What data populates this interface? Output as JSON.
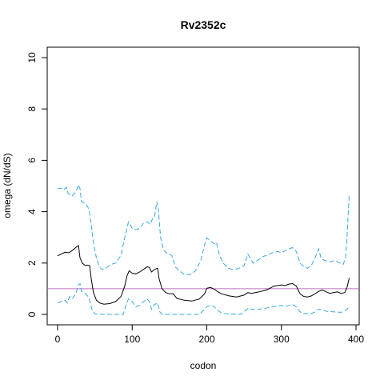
{
  "chart_data": {
    "type": "line",
    "title": "Rv2352c",
    "xlabel": "codon",
    "ylabel": "omega (dN/dS)",
    "xlim": [
      0,
      400
    ],
    "ylim": [
      0,
      10
    ],
    "x_ticks": [
      0,
      100,
      200,
      300,
      400
    ],
    "y_ticks": [
      0,
      2,
      4,
      6,
      8,
      10
    ],
    "reference_line": {
      "y": 1,
      "color": "#c06fc0"
    },
    "grid": false,
    "legend": "none",
    "colors": {
      "mean": "#000000",
      "bounds": "#3aa7e0"
    },
    "series": [
      {
        "style": "solid",
        "points": [
          [
            0,
            2.28
          ],
          [
            5,
            2.35
          ],
          [
            10,
            2.42
          ],
          [
            15,
            2.4
          ],
          [
            20,
            2.5
          ],
          [
            25,
            2.62
          ],
          [
            28,
            2.68
          ],
          [
            30,
            2.2
          ],
          [
            33,
            2.0
          ],
          [
            37,
            1.9
          ],
          [
            40,
            1.92
          ],
          [
            43,
            1.9
          ],
          [
            45,
            1.4
          ],
          [
            48,
            0.85
          ],
          [
            52,
            0.55
          ],
          [
            57,
            0.44
          ],
          [
            62,
            0.4
          ],
          [
            70,
            0.42
          ],
          [
            78,
            0.5
          ],
          [
            85,
            0.7
          ],
          [
            90,
            1.1
          ],
          [
            93,
            1.5
          ],
          [
            96,
            1.7
          ],
          [
            100,
            1.6
          ],
          [
            105,
            1.58
          ],
          [
            110,
            1.65
          ],
          [
            115,
            1.75
          ],
          [
            120,
            1.85
          ],
          [
            123,
            1.83
          ],
          [
            126,
            1.65
          ],
          [
            130,
            1.75
          ],
          [
            134,
            1.8
          ],
          [
            136,
            1.4
          ],
          [
            140,
            1.0
          ],
          [
            145,
            0.85
          ],
          [
            150,
            0.8
          ],
          [
            155,
            0.8
          ],
          [
            160,
            0.62
          ],
          [
            170,
            0.55
          ],
          [
            180,
            0.52
          ],
          [
            190,
            0.6
          ],
          [
            197,
            0.8
          ],
          [
            200,
            1.02
          ],
          [
            205,
            1.05
          ],
          [
            210,
            0.98
          ],
          [
            215,
            0.88
          ],
          [
            220,
            0.8
          ],
          [
            230,
            0.72
          ],
          [
            240,
            0.68
          ],
          [
            250,
            0.75
          ],
          [
            255,
            0.85
          ],
          [
            260,
            0.82
          ],
          [
            270,
            0.88
          ],
          [
            280,
            0.95
          ],
          [
            290,
            1.1
          ],
          [
            300,
            1.15
          ],
          [
            305,
            1.12
          ],
          [
            310,
            1.18
          ],
          [
            315,
            1.2
          ],
          [
            320,
            1.1
          ],
          [
            325,
            0.8
          ],
          [
            330,
            0.7
          ],
          [
            335,
            0.68
          ],
          [
            340,
            0.72
          ],
          [
            345,
            0.8
          ],
          [
            350,
            0.9
          ],
          [
            355,
            0.95
          ],
          [
            360,
            0.88
          ],
          [
            365,
            0.82
          ],
          [
            370,
            0.85
          ],
          [
            375,
            0.88
          ],
          [
            380,
            0.82
          ],
          [
            385,
            0.85
          ],
          [
            388,
            1.05
          ],
          [
            391,
            1.42
          ]
        ]
      },
      {
        "style": "dashed",
        "points": [
          [
            0,
            4.9
          ],
          [
            5,
            4.92
          ],
          [
            8,
            4.85
          ],
          [
            12,
            4.95
          ],
          [
            14,
            4.7
          ],
          [
            20,
            4.62
          ],
          [
            25,
            4.8
          ],
          [
            28,
            5.05
          ],
          [
            30,
            4.9
          ],
          [
            32,
            4.4
          ],
          [
            38,
            4.3
          ],
          [
            42,
            4.1
          ],
          [
            45,
            3.5
          ],
          [
            48,
            2.8
          ],
          [
            52,
            2.2
          ],
          [
            56,
            1.85
          ],
          [
            60,
            1.75
          ],
          [
            65,
            1.8
          ],
          [
            72,
            1.95
          ],
          [
            78,
            2.0
          ],
          [
            85,
            2.3
          ],
          [
            90,
            3.0
          ],
          [
            95,
            3.6
          ],
          [
            100,
            3.35
          ],
          [
            105,
            3.3
          ],
          [
            110,
            3.35
          ],
          [
            115,
            3.55
          ],
          [
            120,
            3.6
          ],
          [
            124,
            3.5
          ],
          [
            127,
            3.7
          ],
          [
            130,
            3.8
          ],
          [
            133,
            4.4
          ],
          [
            135,
            4.1
          ],
          [
            138,
            3.0
          ],
          [
            142,
            2.5
          ],
          [
            148,
            2.35
          ],
          [
            153,
            2.3
          ],
          [
            158,
            1.85
          ],
          [
            163,
            1.7
          ],
          [
            170,
            1.55
          ],
          [
            178,
            1.55
          ],
          [
            185,
            1.7
          ],
          [
            192,
            2.1
          ],
          [
            197,
            2.7
          ],
          [
            200,
            2.98
          ],
          [
            205,
            2.85
          ],
          [
            210,
            2.75
          ],
          [
            213,
            2.8
          ],
          [
            217,
            2.3
          ],
          [
            222,
            2.0
          ],
          [
            228,
            1.8
          ],
          [
            235,
            1.75
          ],
          [
            242,
            1.78
          ],
          [
            250,
            1.9
          ],
          [
            255,
            2.35
          ],
          [
            258,
            2.2
          ],
          [
            262,
            2.0
          ],
          [
            268,
            2.1
          ],
          [
            275,
            2.25
          ],
          [
            280,
            2.3
          ],
          [
            288,
            2.4
          ],
          [
            295,
            2.45
          ],
          [
            300,
            2.4
          ],
          [
            306,
            2.5
          ],
          [
            310,
            2.55
          ],
          [
            315,
            2.6
          ],
          [
            320,
            2.45
          ],
          [
            325,
            2.0
          ],
          [
            330,
            1.85
          ],
          [
            335,
            1.8
          ],
          [
            340,
            1.9
          ],
          [
            345,
            2.2
          ],
          [
            350,
            2.55
          ],
          [
            353,
            2.2
          ],
          [
            358,
            2.1
          ],
          [
            365,
            2.05
          ],
          [
            372,
            2.1
          ],
          [
            378,
            2.0
          ],
          [
            383,
            1.95
          ],
          [
            386,
            2.2
          ],
          [
            388,
            3.0
          ],
          [
            390,
            4.2
          ],
          [
            391,
            4.7
          ]
        ]
      },
      {
        "style": "dashed",
        "points": [
          [
            0,
            0.45
          ],
          [
            5,
            0.5
          ],
          [
            10,
            0.55
          ],
          [
            13,
            0.45
          ],
          [
            16,
            0.7
          ],
          [
            20,
            0.62
          ],
          [
            25,
            0.85
          ],
          [
            28,
            1.15
          ],
          [
            30,
            1.2
          ],
          [
            32,
            0.9
          ],
          [
            38,
            0.8
          ],
          [
            42,
            0.65
          ],
          [
            46,
            0.2
          ],
          [
            50,
            0.02
          ],
          [
            60,
            0.0
          ],
          [
            75,
            0.0
          ],
          [
            88,
            0.0
          ],
          [
            92,
            0.4
          ],
          [
            95,
            0.6
          ],
          [
            100,
            0.5
          ],
          [
            105,
            0.3
          ],
          [
            110,
            0.35
          ],
          [
            115,
            0.5
          ],
          [
            120,
            0.6
          ],
          [
            123,
            0.5
          ],
          [
            126,
            0.2
          ],
          [
            130,
            0.38
          ],
          [
            134,
            0.45
          ],
          [
            137,
            0.1
          ],
          [
            140,
            0.0
          ],
          [
            190,
            0.0
          ],
          [
            197,
            0.2
          ],
          [
            200,
            0.3
          ],
          [
            205,
            0.35
          ],
          [
            210,
            0.3
          ],
          [
            215,
            0.15
          ],
          [
            220,
            0.05
          ],
          [
            230,
            0.02
          ],
          [
            245,
            0.0
          ],
          [
            252,
            0.15
          ],
          [
            256,
            0.25
          ],
          [
            260,
            0.2
          ],
          [
            270,
            0.2
          ],
          [
            280,
            0.25
          ],
          [
            290,
            0.3
          ],
          [
            300,
            0.35
          ],
          [
            305,
            0.3
          ],
          [
            310,
            0.35
          ],
          [
            315,
            0.38
          ],
          [
            320,
            0.3
          ],
          [
            325,
            0.1
          ],
          [
            330,
            0.03
          ],
          [
            340,
            0.03
          ],
          [
            345,
            0.1
          ],
          [
            350,
            0.2
          ],
          [
            355,
            0.18
          ],
          [
            360,
            0.12
          ],
          [
            370,
            0.1
          ],
          [
            380,
            0.08
          ],
          [
            385,
            0.12
          ],
          [
            388,
            0.2
          ],
          [
            391,
            0.32
          ]
        ]
      }
    ]
  }
}
